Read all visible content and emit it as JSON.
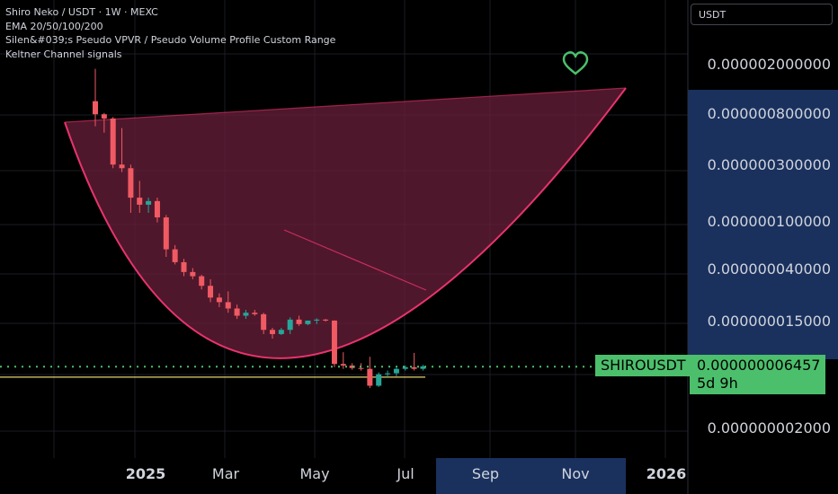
{
  "legend": {
    "title": "Shiro Neko / USDT · 1W · MEXC",
    "lines": [
      "EMA 20/50/100/200",
      "Silen&#039;s Pseudo VPVR / Pseudo Volume Profile Custom Range",
      "Keltner Channel signals"
    ]
  },
  "currency": "USDT",
  "symbol_tag": "SHIROUSDT",
  "current_price": "0.000000006457",
  "countdown": "5d 9h",
  "price_axis": [
    "0.000002000000",
    "0.000000800000",
    "0.000000300000",
    "0.000000100000",
    "0.000000040000",
    "0.000000015000",
    "0.000000002000"
  ],
  "time_axis": [
    {
      "label": "2025",
      "bold": true
    },
    {
      "label": "Mar",
      "bold": false
    },
    {
      "label": "May",
      "bold": false
    },
    {
      "label": "Jul",
      "bold": false
    },
    {
      "label": "Sep",
      "bold": false
    },
    {
      "label": "Nov",
      "bold": false
    },
    {
      "label": "2026",
      "bold": true
    }
  ],
  "colors": {
    "up": "#26a69a",
    "down": "#f05a63",
    "curve": "#e8336e",
    "fill": "#6a1f3a",
    "dotted": "#4cbf6c",
    "hline": "#e6d36a",
    "heart": "#4cbf6c",
    "highlight": "#1e3a6e"
  },
  "icons": {
    "heart": "heart-icon"
  },
  "chart_data": {
    "type": "candlestick",
    "scale": "log",
    "interval": "1W",
    "candles": [
      {
        "o": 1.0,
        "h": 1.85,
        "l": 0.62,
        "c": 0.78
      },
      {
        "o": 0.78,
        "h": 0.8,
        "l": 0.55,
        "c": 0.72
      },
      {
        "o": 0.72,
        "h": 0.74,
        "l": 0.28,
        "c": 0.3
      },
      {
        "o": 0.3,
        "h": 0.6,
        "l": 0.26,
        "c": 0.28
      },
      {
        "o": 0.28,
        "h": 0.3,
        "l": 0.12,
        "c": 0.16
      },
      {
        "o": 0.16,
        "h": 0.22,
        "l": 0.12,
        "c": 0.14
      },
      {
        "o": 0.14,
        "h": 0.16,
        "l": 0.12,
        "c": 0.15
      },
      {
        "o": 0.15,
        "h": 0.16,
        "l": 0.1,
        "c": 0.11
      },
      {
        "o": 0.11,
        "h": 0.115,
        "l": 0.052,
        "c": 0.06
      },
      {
        "o": 0.06,
        "h": 0.065,
        "l": 0.045,
        "c": 0.047
      },
      {
        "o": 0.047,
        "h": 0.05,
        "l": 0.036,
        "c": 0.039
      },
      {
        "o": 0.039,
        "h": 0.042,
        "l": 0.034,
        "c": 0.036
      },
      {
        "o": 0.036,
        "h": 0.037,
        "l": 0.028,
        "c": 0.03
      },
      {
        "o": 0.03,
        "h": 0.034,
        "l": 0.022,
        "c": 0.024
      },
      {
        "o": 0.024,
        "h": 0.026,
        "l": 0.02,
        "c": 0.022
      },
      {
        "o": 0.022,
        "h": 0.027,
        "l": 0.018,
        "c": 0.0195
      },
      {
        "o": 0.0195,
        "h": 0.021,
        "l": 0.016,
        "c": 0.017
      },
      {
        "o": 0.017,
        "h": 0.019,
        "l": 0.016,
        "c": 0.018
      },
      {
        "o": 0.018,
        "h": 0.019,
        "l": 0.017,
        "c": 0.0175
      },
      {
        "o": 0.0175,
        "h": 0.018,
        "l": 0.012,
        "c": 0.013
      },
      {
        "o": 0.013,
        "h": 0.0135,
        "l": 0.011,
        "c": 0.012
      },
      {
        "o": 0.012,
        "h": 0.0135,
        "l": 0.0118,
        "c": 0.013
      },
      {
        "o": 0.013,
        "h": 0.0165,
        "l": 0.012,
        "c": 0.0158
      },
      {
        "o": 0.0158,
        "h": 0.017,
        "l": 0.014,
        "c": 0.0145
      },
      {
        "o": 0.0145,
        "h": 0.0155,
        "l": 0.0142,
        "c": 0.0155
      },
      {
        "o": 0.0155,
        "h": 0.0162,
        "l": 0.0145,
        "c": 0.0158
      },
      {
        "o": 0.0158,
        "h": 0.016,
        "l": 0.0152,
        "c": 0.0155
      },
      {
        "o": 0.0155,
        "h": 0.0156,
        "l": 0.0064,
        "c": 0.0068
      },
      {
        "o": 0.0068,
        "h": 0.0085,
        "l": 0.0062,
        "c": 0.0066
      },
      {
        "o": 0.0066,
        "h": 0.0069,
        "l": 0.0061,
        "c": 0.0063
      },
      {
        "o": 0.0063,
        "h": 0.0069,
        "l": 0.006,
        "c": 0.0062
      },
      {
        "o": 0.0062,
        "h": 0.0078,
        "l": 0.0043,
        "c": 0.0045
      },
      {
        "o": 0.0045,
        "h": 0.0058,
        "l": 0.0044,
        "c": 0.0056
      },
      {
        "o": 0.0056,
        "h": 0.006,
        "l": 0.0053,
        "c": 0.0057
      },
      {
        "o": 0.0057,
        "h": 0.0063,
        "l": 0.0054,
        "c": 0.0062
      },
      {
        "o": 0.0062,
        "h": 0.0066,
        "l": 0.006,
        "c": 0.0064
      },
      {
        "o": 0.0064,
        "h": 0.0084,
        "l": 0.006,
        "c": 0.0062
      },
      {
        "o": 0.0062,
        "h": 0.0067,
        "l": 0.006,
        "c": 0.0065
      }
    ],
    "current_price": 0.006457,
    "horizontal_line": 0.0053,
    "grid": true
  }
}
